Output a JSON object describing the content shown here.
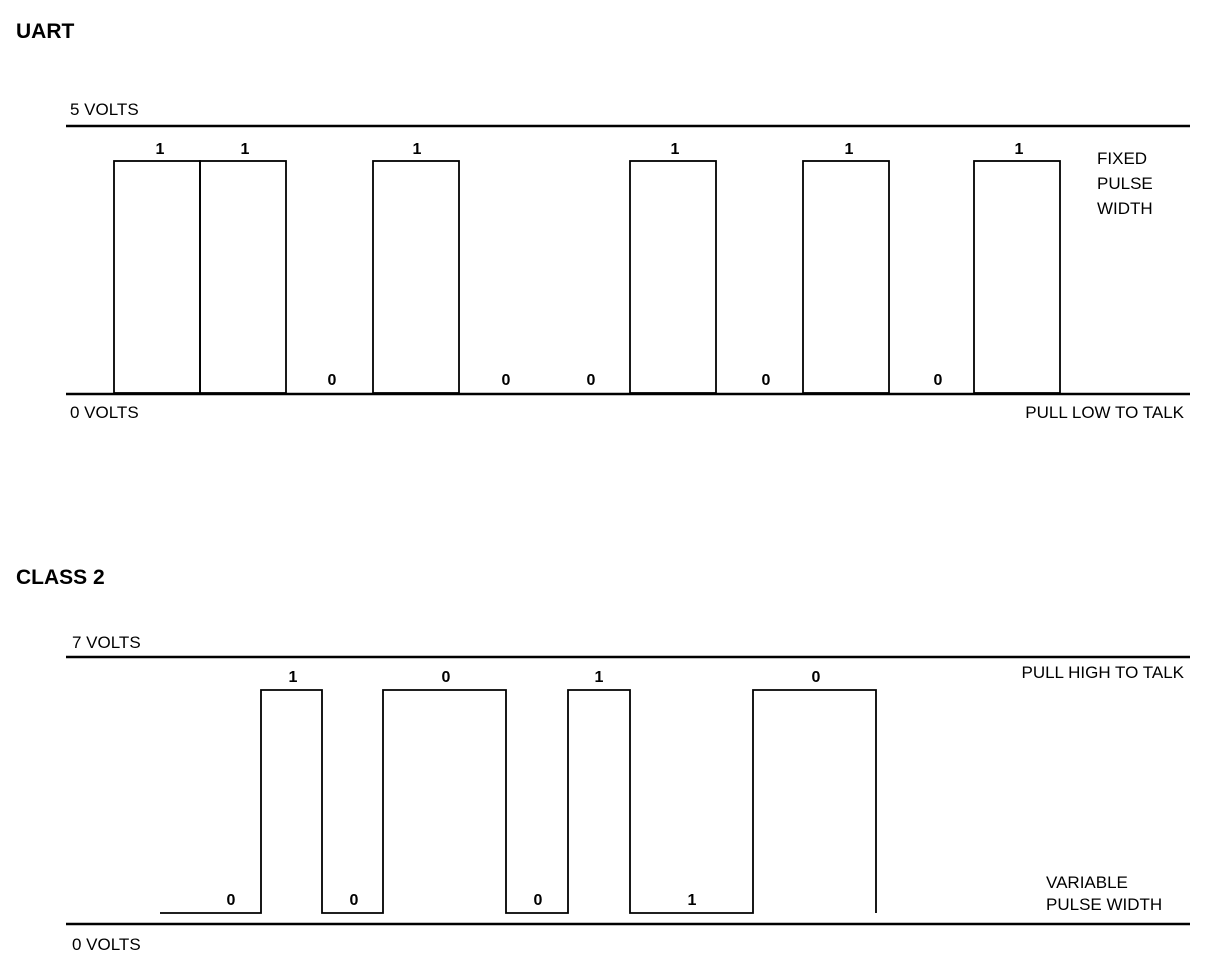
{
  "uart": {
    "title": "UART",
    "high_label": "5 VOLTS",
    "low_label": "0 VOLTS",
    "note_lines": [
      "FIXED",
      "PULSE",
      "WIDTH"
    ],
    "talk_label": "PULL LOW TO TALK",
    "bits": [
      "1",
      "1",
      "0",
      "1",
      "0",
      "0",
      "1",
      "0",
      "1",
      "0",
      "1"
    ]
  },
  "class2": {
    "title": "CLASS 2",
    "high_label": "7 VOLTS",
    "low_label": "0 VOLTS",
    "talk_label": "PULL HIGH TO TALK",
    "note_lines": [
      "VARIABLE",
      "PULSE WIDTH"
    ],
    "bits_high": [
      "1",
      "0",
      "1",
      "0"
    ],
    "bits_low": [
      "0",
      "0",
      "0",
      "1"
    ]
  }
}
